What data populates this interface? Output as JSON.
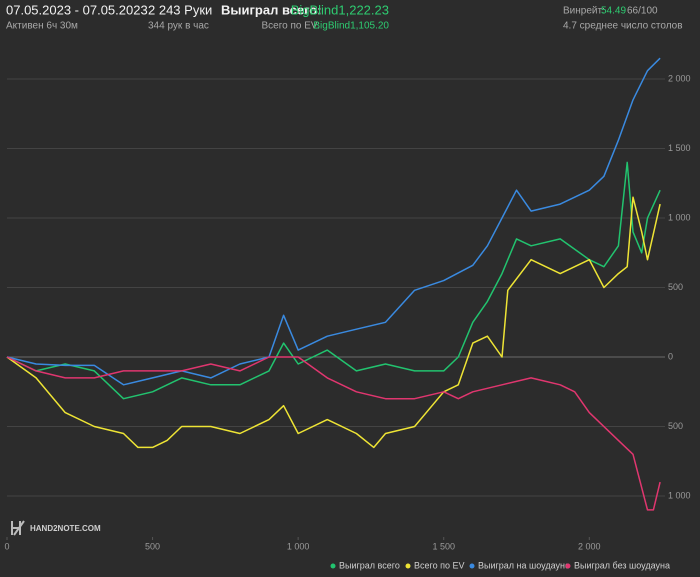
{
  "header": {
    "date_range": "07.05.2023 - 07.05.2023",
    "active": "Активен 6ч 30м",
    "hands": "2 243 Руки",
    "hands_per_hour": "344 рук в час",
    "won_label": "Выиграл всего:",
    "won_value": "BigBlind1,222.23",
    "ev_label": "Всего по EV:",
    "ev_value": "BigBlind1,105.20",
    "winrate_label": "Винрейт:",
    "winrate_value": "54.49",
    "winrate_ratio": "66/100",
    "tables": "4.7 среднее число столов"
  },
  "logo": "HAND2NOTE.COM",
  "chart_data": {
    "type": "line",
    "xlim": [
      0,
      2260
    ],
    "ylim": [
      -1295,
      2209
    ],
    "xticks": [
      0,
      500,
      {
        "value": 1000,
        "label": "1 000"
      },
      {
        "value": 1500,
        "label": "1 500"
      },
      {
        "value": 2000,
        "label": "2 000"
      }
    ],
    "yticks": [
      {
        "value": 2000,
        "label": "2 000"
      },
      {
        "value": 1500,
        "label": "1 500"
      },
      {
        "value": 1000,
        "label": "1 000"
      },
      500,
      0,
      {
        "value": -500,
        "label": "500"
      },
      {
        "value": -1000,
        "label": "1 000"
      }
    ],
    "grid": true,
    "series": [
      {
        "name": "Выиграл всего",
        "color": "#22c36f",
        "x": [
          0,
          100,
          200,
          300,
          400,
          500,
          600,
          700,
          800,
          900,
          950,
          1000,
          1100,
          1200,
          1300,
          1400,
          1500,
          1550,
          1600,
          1650,
          1700,
          1750,
          1800,
          1900,
          2000,
          2050,
          2100,
          2130,
          2150,
          2180,
          2200,
          2243
        ],
        "values": [
          0,
          -100,
          -50,
          -100,
          -300,
          -250,
          -150,
          -200,
          -200,
          -100,
          100,
          -50,
          50,
          -100,
          -50,
          -100,
          -100,
          0,
          250,
          400,
          600,
          850,
          800,
          850,
          700,
          650,
          800,
          1400,
          900,
          750,
          1000,
          1200
        ]
      },
      {
        "name": "Всего по EV",
        "color": "#eee435",
        "x": [
          0,
          100,
          200,
          300,
          400,
          450,
          500,
          550,
          600,
          700,
          800,
          900,
          950,
          1000,
          1100,
          1200,
          1260,
          1300,
          1400,
          1500,
          1550,
          1600,
          1650,
          1700,
          1720,
          1800,
          1900,
          2000,
          2050,
          2100,
          2130,
          2150,
          2180,
          2200,
          2243
        ],
        "values": [
          0,
          -150,
          -400,
          -500,
          -550,
          -650,
          -650,
          -600,
          -500,
          -500,
          -550,
          -450,
          -350,
          -550,
          -450,
          -550,
          -650,
          -550,
          -500,
          -250,
          -200,
          100,
          150,
          0,
          480,
          700,
          600,
          700,
          500,
          600,
          650,
          1150,
          900,
          700,
          1100
        ]
      },
      {
        "name": "Выиграл на шоудауне",
        "color": "#3a8ae0",
        "x": [
          0,
          100,
          200,
          300,
          400,
          500,
          600,
          700,
          800,
          900,
          950,
          1000,
          1100,
          1200,
          1300,
          1400,
          1500,
          1600,
          1650,
          1700,
          1750,
          1800,
          1900,
          2000,
          2050,
          2100,
          2150,
          2200,
          2243
        ],
        "values": [
          0,
          -50,
          -60,
          -60,
          -200,
          -150,
          -100,
          -150,
          -50,
          0,
          300,
          50,
          150,
          200,
          250,
          480,
          550,
          660,
          800,
          1000,
          1200,
          1050,
          1100,
          1200,
          1300,
          1560,
          1850,
          2060,
          2150
        ]
      },
      {
        "name": "Выиграл без шоудауна",
        "color": "#e0366f",
        "x": [
          0,
          100,
          200,
          300,
          400,
          500,
          600,
          700,
          800,
          900,
          1000,
          1100,
          1200,
          1300,
          1400,
          1500,
          1550,
          1600,
          1700,
          1800,
          1900,
          1950,
          2000,
          2100,
          2150,
          2200,
          2220,
          2243
        ],
        "values": [
          0,
          -100,
          -150,
          -150,
          -100,
          -100,
          -100,
          -50,
          -100,
          0,
          0,
          -150,
          -250,
          -300,
          -300,
          -250,
          -300,
          -250,
          -200,
          -150,
          -200,
          -250,
          -400,
          -600,
          -700,
          -1100,
          -1100,
          -900
        ]
      }
    ]
  }
}
